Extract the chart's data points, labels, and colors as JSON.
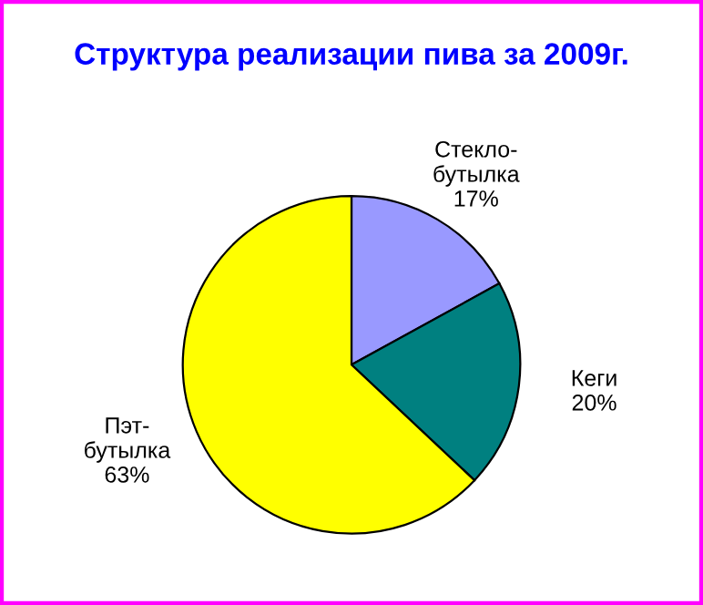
{
  "chart_data": {
    "type": "pie",
    "title": "Структура реализации пива за 2009г.",
    "categories": [
      "Стекло-бутылка",
      "Кеги",
      "Пэт-бутылка"
    ],
    "values": [
      17,
      20,
      63
    ],
    "value_labels": [
      "17%",
      "20%",
      "63%"
    ],
    "colors": [
      "#9999ff",
      "#008080",
      "#ffff00"
    ]
  }
}
